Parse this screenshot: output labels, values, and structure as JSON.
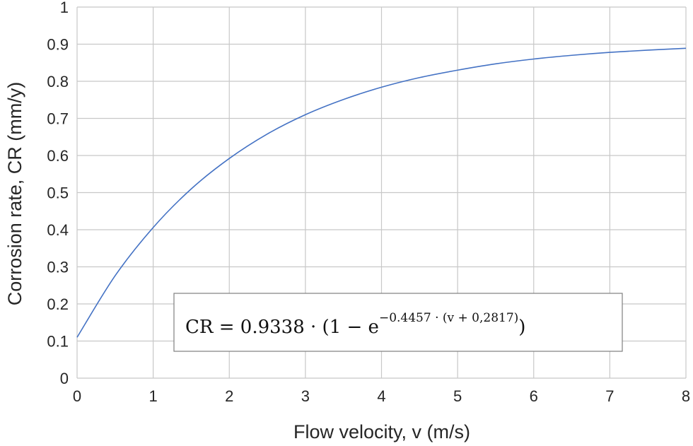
{
  "chart_data": {
    "type": "line",
    "title": "",
    "xlabel": "Flow velocity, v (m/s)",
    "ylabel": "Corrosion rate, CR (mm/y)",
    "xlim": [
      0,
      8
    ],
    "ylim": [
      0,
      1
    ],
    "x_ticks": [
      0,
      1,
      2,
      3,
      4,
      5,
      6,
      7,
      8
    ],
    "y_ticks": [
      0,
      0.1,
      0.2,
      0.3,
      0.4,
      0.5,
      0.6,
      0.7,
      0.8,
      0.9,
      1
    ],
    "x_tick_labels": [
      "0",
      "1",
      "2",
      "3",
      "4",
      "5",
      "6",
      "7",
      "8"
    ],
    "y_tick_labels": [
      "0",
      "0.1",
      "0.2",
      "0.3",
      "0.4",
      "0.5",
      "0.6",
      "0.7",
      "0.8",
      "0.9",
      "1"
    ],
    "grid": true,
    "series": [
      {
        "color": "#4472c4",
        "x": [
          0,
          0.5,
          1,
          1.5,
          2,
          2.5,
          3,
          3.5,
          4,
          4.5,
          5,
          5.5,
          6,
          6.5,
          7,
          7.5,
          8
        ],
        "y": [
          0.11,
          0.276,
          0.406,
          0.51,
          0.592,
          0.658,
          0.71,
          0.751,
          0.784,
          0.81,
          0.83,
          0.847,
          0.86,
          0.87,
          0.878,
          0.884,
          0.889
        ]
      }
    ],
    "annotation": {
      "lhs": "CR = 0.9338 · (1 − e",
      "exponent": "−0.4457 · (v + 0,2817)",
      "rhs": ")",
      "border_color": "#7f7f7f"
    }
  }
}
